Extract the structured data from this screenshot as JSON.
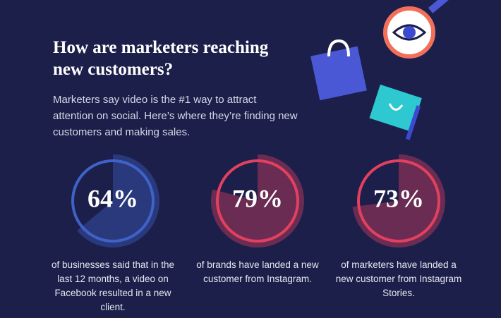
{
  "header": {
    "title": "How are marketers reaching new customers?",
    "description": "Marketers say video is the #1 way to attract attention on social. Here’s where they’re finding new customers and making sales."
  },
  "chart_data": [
    {
      "type": "gauge",
      "values": [
        64
      ],
      "value_labels": [
        "64%"
      ],
      "color": "#3f62c8",
      "caption": "of businesses said that in the last 12 months, a video on Facebook resulted in a new client."
    },
    {
      "type": "gauge",
      "values": [
        79
      ],
      "value_labels": [
        "79%"
      ],
      "color": "#e2405e",
      "caption": "of brands have landed a new customer from Instagram."
    },
    {
      "type": "gauge",
      "values": [
        73
      ],
      "value_labels": [
        "73%"
      ],
      "color": "#e2405e",
      "caption": "of marketers have landed a new customer from Instagram Stories."
    }
  ]
}
